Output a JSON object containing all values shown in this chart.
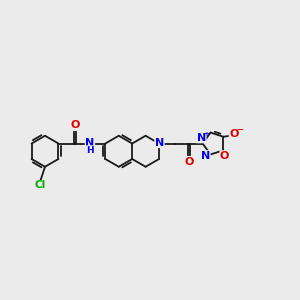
{
  "bg_color": "#ebebeb",
  "bond_color": "#1a1a1a",
  "bond_width": 1.3,
  "atom_colors": {
    "N": "#0000ee",
    "O": "#dd0000",
    "Cl": "#00aa00"
  },
  "font_size": 7.0,
  "fig_w": 3.0,
  "fig_h": 3.0,
  "dpi": 100,
  "xlim": [
    0,
    12
  ],
  "ylim": [
    2,
    8
  ]
}
